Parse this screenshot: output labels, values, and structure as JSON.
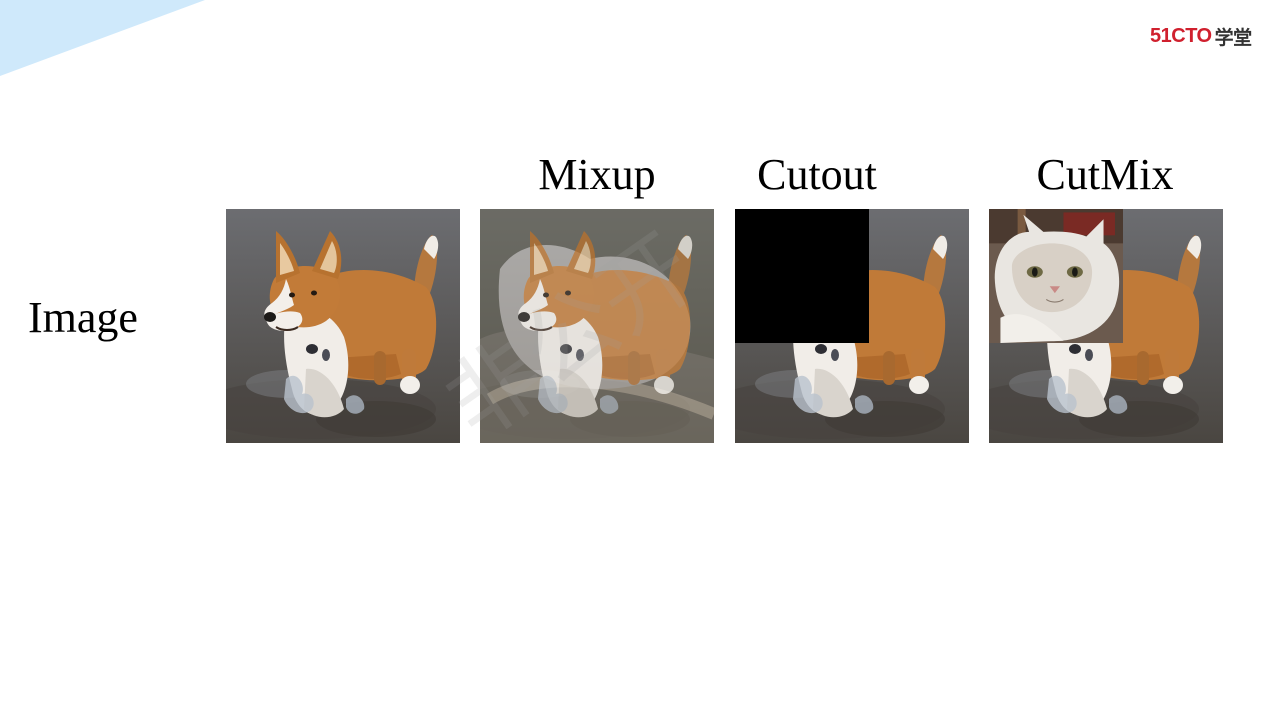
{
  "logo": {
    "brand": "51CTO",
    "suffix": "学堂"
  },
  "row_label": "Image",
  "columns": [
    {
      "label": "",
      "technique": "original"
    },
    {
      "label": "Mixup",
      "technique": "mixup"
    },
    {
      "label": "Cutout",
      "technique": "cutout"
    },
    {
      "label": "CutMix",
      "technique": "cutmix"
    }
  ],
  "watermark": "非公开",
  "colors": {
    "accent": "#d0202e",
    "corner": "#cfe9fb"
  }
}
